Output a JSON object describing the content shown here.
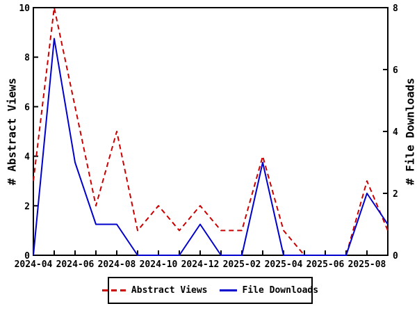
{
  "chart_data": {
    "type": "line",
    "title": "",
    "x": [
      "2024-04",
      "2024-05",
      "2024-06",
      "2024-07",
      "2024-08",
      "2024-09",
      "2024-10",
      "2024-11",
      "2024-12",
      "2025-01",
      "2025-02",
      "2025-03",
      "2025-04",
      "2025-05",
      "2025-06",
      "2025-07",
      "2025-08",
      "2025-09"
    ],
    "x_tick_labels": [
      "2024-04",
      "2024-06",
      "2024-08",
      "2024-10",
      "2024-12",
      "2025-02",
      "2025-04",
      "2025-06",
      "2025-08"
    ],
    "series": [
      {
        "name": "Abstract Views",
        "axis": "left",
        "color": "#cc0000",
        "style": "dashed",
        "values": [
          3,
          10,
          6,
          2,
          5,
          1,
          2,
          1,
          2,
          1,
          1,
          4,
          1,
          0,
          0,
          0,
          3,
          1
        ]
      },
      {
        "name": "File Downloads",
        "axis": "right",
        "color": "#0000cc",
        "style": "solid",
        "values": [
          0,
          7,
          3,
          1,
          1,
          0,
          0,
          0,
          1,
          0,
          0,
          3,
          0,
          0,
          0,
          0,
          2,
          1
        ]
      }
    ],
    "left_axis": {
      "label": "# Abstract Views",
      "min": 0,
      "max": 10,
      "ticks": [
        0,
        2,
        4,
        6,
        8,
        10
      ]
    },
    "right_axis": {
      "label": "# File Downloads",
      "min": 0,
      "max": 8,
      "ticks": [
        0,
        2,
        4,
        6,
        8
      ]
    },
    "legend": {
      "position": "bottom-center",
      "entries": [
        "Abstract Views",
        "File Downloads"
      ]
    },
    "grid": false,
    "axis_color": "#000000",
    "background": "#ffffff"
  }
}
